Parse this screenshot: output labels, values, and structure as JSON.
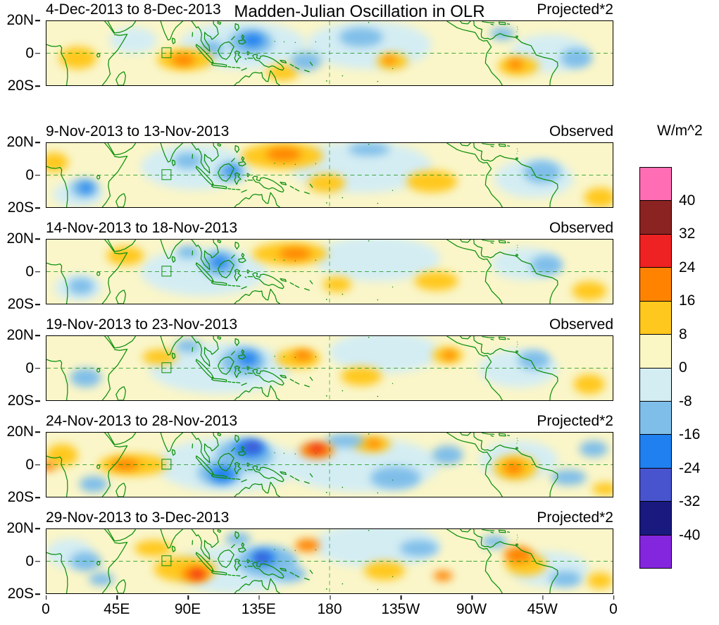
{
  "figure": {
    "background_color": "#FFFFFF",
    "coastline_color": "#0A8F0A",
    "axis_color": "#000000"
  },
  "chart_data": {
    "type": "heatmap",
    "title": "Madden-Julian Oscillation in OLR",
    "units": "W/m^2",
    "lon_range_deg_east": [
      0,
      360
    ],
    "lat_range_deg_north": [
      -20,
      20
    ],
    "x_tick_labels": [
      "0",
      "45E",
      "90E",
      "135E",
      "180",
      "135W",
      "90W",
      "45W",
      "0"
    ],
    "y_tick_labels": [
      "20N",
      "0",
      "20S"
    ],
    "grid_lines": {
      "equator_dashed": true,
      "meridian_180_dashed": true
    },
    "colorbar_levels": [
      -40,
      -32,
      -24,
      -16,
      -8,
      0,
      8,
      16,
      24,
      32,
      40
    ],
    "colorbar_tick_labels_top_to_bottom": [
      "40",
      "32",
      "24",
      "16",
      "8",
      "0",
      "-8",
      "-16",
      "-24",
      "-32",
      "-40"
    ],
    "colorbar_colors_top_to_bottom": [
      "#FF6EB4",
      "#8B2322",
      "#EE2222",
      "#FF8300",
      "#FFC81E",
      "#FBF7C4",
      "#D4EDF3",
      "#7FBEE9",
      "#2080F0",
      "#4853CE",
      "#191980",
      "#8426DE"
    ],
    "background_anomaly_color": "#FAF6C9",
    "anomaly_center_fields": [
      "lon_deg_east",
      "lat_deg_north",
      "radius_lon_deg",
      "radius_lat_deg",
      "olr_anomaly_wm2"
    ],
    "panels": [
      {
        "date_range": "9-Nov-2013 to 13-Nov-2013",
        "source_label": "Observed",
        "anomaly_centers": [
          [
            95,
            5,
            35,
            14,
            -4
          ],
          [
            200,
            5,
            45,
            16,
            -4
          ],
          [
            310,
            -2,
            25,
            12,
            -4
          ],
          [
            20,
            -12,
            16,
            8,
            -4
          ],
          [
            150,
            12,
            26,
            8,
            12
          ],
          [
            151,
            13,
            11,
            4,
            20
          ],
          [
            5,
            8,
            9,
            6,
            10
          ],
          [
            245,
            -4,
            16,
            7,
            10
          ],
          [
            352,
            -14,
            10,
            6,
            10
          ],
          [
            178,
            -5,
            12,
            6,
            10
          ],
          [
            90,
            9,
            9,
            5,
            -10
          ],
          [
            117,
            2,
            9,
            6,
            -10
          ],
          [
            118,
            3,
            4,
            3,
            -18
          ],
          [
            24,
            -8,
            9,
            6,
            -10
          ],
          [
            25,
            -8,
            4,
            3,
            -18
          ],
          [
            315,
            2,
            12,
            7,
            -10
          ],
          [
            205,
            16,
            13,
            4,
            -10
          ]
        ]
      },
      {
        "date_range": "14-Nov-2013 to 18-Nov-2013",
        "source_label": "Observed",
        "anomaly_centers": [
          [
            100,
            0,
            40,
            15,
            -4
          ],
          [
            210,
            8,
            40,
            14,
            -4
          ],
          [
            305,
            5,
            22,
            10,
            -4
          ],
          [
            20,
            -10,
            15,
            8,
            -4
          ],
          [
            155,
            11,
            24,
            7,
            12
          ],
          [
            158,
            11,
            10,
            3.5,
            20
          ],
          [
            50,
            10,
            12,
            6,
            10
          ],
          [
            248,
            -6,
            14,
            6,
            10
          ],
          [
            345,
            -12,
            11,
            6,
            10
          ],
          [
            185,
            -8,
            9,
            5,
            10
          ],
          [
            110,
            5,
            12,
            8,
            -10
          ],
          [
            110,
            6,
            5,
            3.5,
            -18
          ],
          [
            22,
            -9,
            8,
            5,
            -10
          ],
          [
            318,
            4,
            10,
            6,
            -10
          ],
          [
            90,
            12,
            7,
            4,
            -10
          ]
        ]
      },
      {
        "date_range": "19-Nov-2013 to 23-Nov-2013",
        "source_label": "Observed",
        "anomaly_centers": [
          [
            110,
            0,
            45,
            16,
            -4
          ],
          [
            215,
            10,
            35,
            13,
            -4
          ],
          [
            300,
            0,
            25,
            12,
            -4
          ],
          [
            160,
            6,
            14,
            6,
            10
          ],
          [
            163,
            8,
            6,
            3,
            18
          ],
          [
            72,
            7,
            11,
            5,
            10
          ],
          [
            255,
            8,
            10,
            5,
            12
          ],
          [
            256,
            8,
            4,
            2.5,
            18
          ],
          [
            345,
            -10,
            10,
            6,
            10
          ],
          [
            200,
            -5,
            13,
            6,
            10
          ],
          [
            125,
            4,
            14,
            9,
            -12
          ],
          [
            128,
            6,
            6,
            4,
            -22
          ],
          [
            90,
            14,
            8,
            4,
            -10
          ],
          [
            25,
            -6,
            10,
            6,
            -10
          ],
          [
            310,
            5,
            10,
            6,
            -10
          ]
        ]
      },
      {
        "date_range": "24-Nov-2013 to 28-Nov-2013",
        "source_label": "Projected*2",
        "anomaly_centers": [
          [
            115,
            0,
            45,
            17,
            -4
          ],
          [
            200,
            0,
            50,
            17,
            -4
          ],
          [
            300,
            3,
            25,
            12,
            -4
          ],
          [
            55,
            0,
            22,
            7,
            12
          ],
          [
            50,
            0,
            9,
            3.5,
            18
          ],
          [
            1,
            -1,
            5,
            3,
            20
          ],
          [
            10,
            6,
            10,
            7,
            10
          ],
          [
            172,
            9,
            11,
            5,
            20
          ],
          [
            172,
            10,
            5,
            2.5,
            30
          ],
          [
            207,
            13,
            12,
            5,
            12
          ],
          [
            208,
            13,
            5,
            2.5,
            18
          ],
          [
            298,
            -2,
            14,
            8,
            12
          ],
          [
            297,
            -2,
            6,
            4,
            18
          ],
          [
            355,
            -15,
            8,
            4,
            10
          ],
          [
            126,
            6,
            18,
            10,
            -14
          ],
          [
            129,
            10,
            10,
            5,
            -22
          ],
          [
            131,
            11,
            5.5,
            3,
            -30
          ],
          [
            110,
            -5,
            14,
            8,
            -14
          ],
          [
            112,
            -6,
            8,
            5,
            -20
          ],
          [
            30,
            -12,
            9,
            5,
            -12
          ],
          [
            222,
            -8,
            16,
            7,
            -14
          ],
          [
            190,
            15,
            12,
            4,
            -12
          ],
          [
            255,
            6,
            10,
            6,
            -12
          ],
          [
            332,
            -8,
            11,
            5,
            -14
          ],
          [
            348,
            10,
            9,
            5,
            -10
          ]
        ]
      },
      {
        "date_range": "29-Nov-2013 to 3-Dec-2013",
        "source_label": "Projected*2",
        "anomaly_centers": [
          [
            120,
            -5,
            40,
            15,
            -4
          ],
          [
            210,
            10,
            40,
            14,
            -4
          ],
          [
            320,
            -5,
            25,
            11,
            -4
          ],
          [
            15,
            5,
            15,
            9,
            -4
          ],
          [
            88,
            -5,
            20,
            8,
            12
          ],
          [
            95,
            -8,
            9,
            4.5,
            20
          ],
          [
            96,
            -8,
            4,
            2.5,
            28
          ],
          [
            68,
            8,
            12,
            5,
            10
          ],
          [
            166,
            10,
            8,
            4,
            18
          ],
          [
            215,
            -6,
            13,
            6,
            10
          ],
          [
            252,
            -9,
            6,
            3,
            16
          ],
          [
            300,
            4,
            9,
            5,
            16
          ],
          [
            305,
            -2,
            13,
            7,
            10
          ],
          [
            352,
            -12,
            8,
            5,
            10
          ],
          [
            140,
            0,
            19,
            10,
            -14
          ],
          [
            138,
            2,
            8,
            4.5,
            -22
          ],
          [
            137,
            2,
            4,
            2.5,
            -28
          ],
          [
            155,
            -8,
            10,
            5,
            -12
          ],
          [
            122,
            14,
            8,
            4,
            -12
          ],
          [
            25,
            0,
            10,
            6,
            -10
          ],
          [
            35,
            -11,
            8,
            4,
            -10
          ],
          [
            237,
            8,
            12,
            5,
            -12
          ],
          [
            330,
            -11,
            10,
            5,
            -14
          ],
          [
            285,
            12,
            8,
            4,
            -10
          ]
        ]
      },
      {
        "date_range": "4-Dec-2013 to 8-Dec-2013",
        "source_label": "Projected*2",
        "anomaly_centers": [
          [
            125,
            5,
            40,
            15,
            -4
          ],
          [
            205,
            5,
            40,
            15,
            -4
          ],
          [
            320,
            0,
            25,
            12,
            -4
          ],
          [
            55,
            8,
            15,
            8,
            -4
          ],
          [
            88,
            -4,
            18,
            7,
            12
          ],
          [
            87,
            -4,
            7,
            3.5,
            18
          ],
          [
            20,
            -3,
            12,
            7,
            10
          ],
          [
            150,
            -12,
            10,
            5,
            10
          ],
          [
            220,
            -5,
            10,
            5,
            10
          ],
          [
            218,
            -4,
            4,
            2.5,
            16
          ],
          [
            300,
            -8,
            13,
            6,
            10
          ],
          [
            298,
            -7,
            5,
            3,
            16
          ],
          [
            130,
            7,
            14,
            8,
            -14
          ],
          [
            131,
            8,
            7,
            4,
            -22
          ],
          [
            105,
            3,
            8,
            5,
            -10
          ],
          [
            200,
            10,
            14,
            6,
            -12
          ],
          [
            290,
            12,
            8,
            4,
            -10
          ],
          [
            337,
            -3,
            10,
            6,
            -12
          ],
          [
            165,
            -5,
            10,
            6,
            -10
          ]
        ]
      }
    ]
  }
}
